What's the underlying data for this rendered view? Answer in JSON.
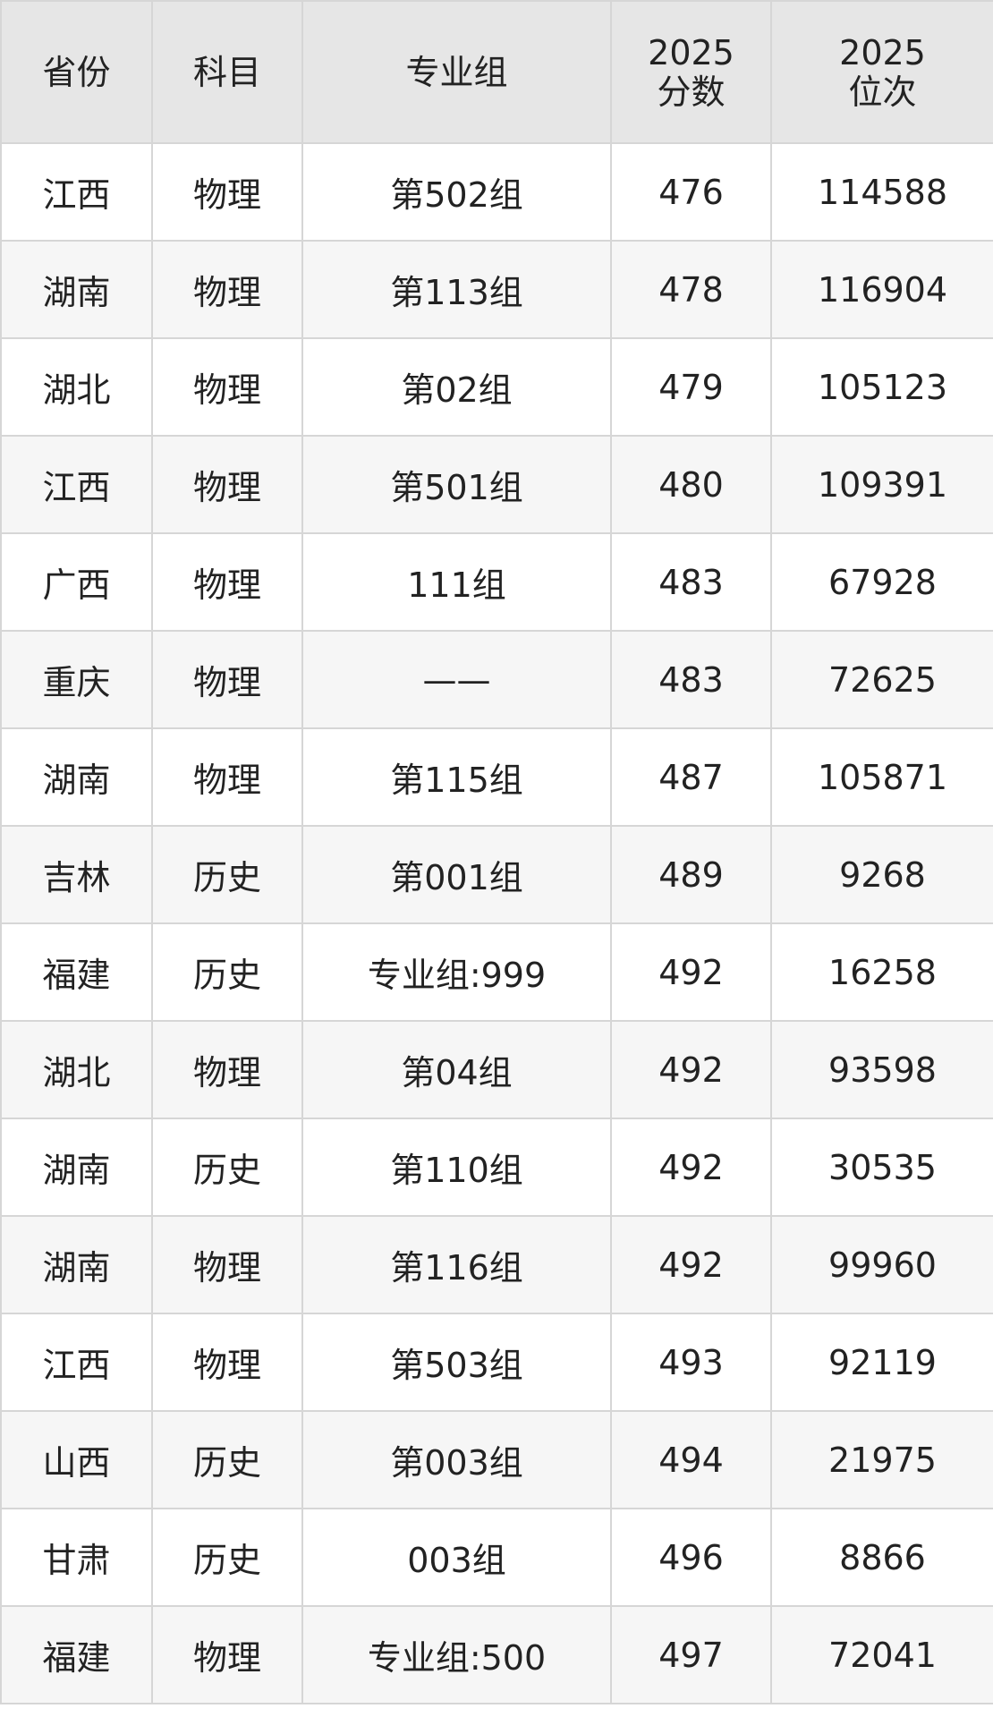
{
  "table": {
    "headers": [
      {
        "lines": [
          "省份"
        ]
      },
      {
        "lines": [
          "科目"
        ]
      },
      {
        "lines": [
          "专业组"
        ]
      },
      {
        "lines": [
          "2025",
          "分数"
        ]
      },
      {
        "lines": [
          "2025",
          "位次"
        ]
      }
    ],
    "rows": [
      [
        "江西",
        "物理",
        "第502组",
        "476",
        "114588"
      ],
      [
        "湖南",
        "物理",
        "第113组",
        "478",
        "116904"
      ],
      [
        "湖北",
        "物理",
        "第02组",
        "479",
        "105123"
      ],
      [
        "江西",
        "物理",
        "第501组",
        "480",
        "109391"
      ],
      [
        "广西",
        "物理",
        "111组",
        "483",
        "67928"
      ],
      [
        "重庆",
        "物理",
        "——",
        "483",
        "72625"
      ],
      [
        "湖南",
        "物理",
        "第115组",
        "487",
        "105871"
      ],
      [
        "吉林",
        "历史",
        "第001组",
        "489",
        "9268"
      ],
      [
        "福建",
        "历史",
        "专业组:999",
        "492",
        "16258"
      ],
      [
        "湖北",
        "物理",
        "第04组",
        "492",
        "93598"
      ],
      [
        "湖南",
        "历史",
        "第110组",
        "492",
        "30535"
      ],
      [
        "湖南",
        "物理",
        "第116组",
        "492",
        "99960"
      ],
      [
        "江西",
        "物理",
        "第503组",
        "493",
        "92119"
      ],
      [
        "山西",
        "历史",
        "第003组",
        "494",
        "21975"
      ],
      [
        "甘肃",
        "历史",
        "003组",
        "496",
        "8866"
      ],
      [
        "福建",
        "物理",
        "专业组:500",
        "497",
        "72041"
      ]
    ]
  }
}
